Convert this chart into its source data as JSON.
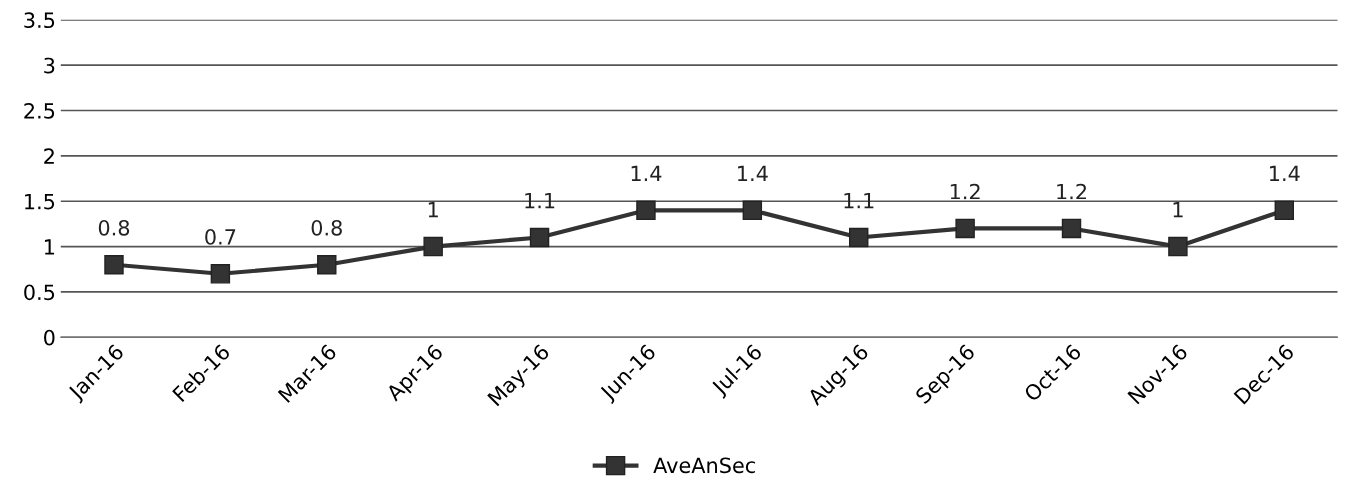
{
  "chart_data": {
    "type": "line",
    "categories": [
      "Jan-16",
      "Feb-16",
      "Mar-16",
      "Apr-16",
      "May-16",
      "Jun-16",
      "Jul-16",
      "Aug-16",
      "Sep-16",
      "Oct-16",
      "Nov-16",
      "Dec-16"
    ],
    "series": [
      {
        "name": "AveAnSec",
        "color": "#333333",
        "values": [
          0.8,
          0.7,
          0.8,
          1,
          1.1,
          1.4,
          1.4,
          1.1,
          1.2,
          1.2,
          1,
          1.4
        ]
      }
    ],
    "ylim": [
      0,
      3.5
    ],
    "yticks": [
      0,
      0.5,
      1,
      1.5,
      2,
      2.5,
      3,
      3.5
    ],
    "grid": "y",
    "legend": "bottom",
    "marker": "square",
    "line_style": "solid",
    "data_labels": true
  }
}
